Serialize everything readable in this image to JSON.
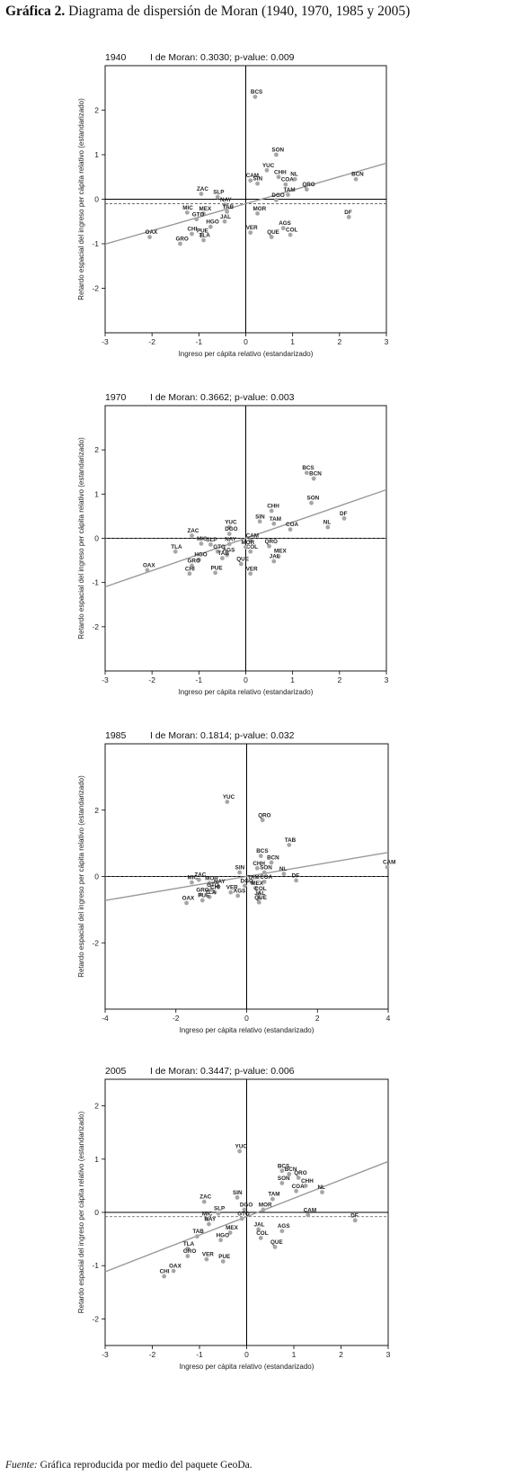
{
  "figure": {
    "title_bold": "Gráfica 2.",
    "title_rest": " Diagrama de dispersión de Moran (1940, 1970, 1985 y 2005)",
    "source_label": "Fuente:",
    "source_text": " Gráfica reproducida por medio del paquete GeoDa."
  },
  "colors": {
    "points": "#a6a6a6",
    "regression": "#9a9a9a",
    "axes": "#000000",
    "frame": "#000000"
  },
  "chart_data": [
    {
      "type": "scatter",
      "year": "1940",
      "stat": "I de Moran: 0.3030; p-value: 0.009",
      "xlabel": "Ingreso per cápita relativo (estandarizado)",
      "ylabel": "Retardo espacial del ingreso per cápita relativo (estandarizado)",
      "xlim": [
        -3,
        3
      ],
      "ylim": [
        -3,
        3
      ],
      "xticks": [
        "-3",
        "-2",
        "-1",
        "0",
        "1",
        "2",
        "3"
      ],
      "yticks": [
        "-2",
        "-1",
        "0",
        "1",
        "2"
      ],
      "ytick_values": [
        -2,
        -1,
        0,
        1,
        2
      ],
      "regression": {
        "slope": 0.303,
        "intercept": -0.1
      },
      "mean_line": -0.1,
      "points": [
        {
          "label": "BCS",
          "x": 0.2,
          "y": 2.3
        },
        {
          "label": "SON",
          "x": 0.65,
          "y": 1.0
        },
        {
          "label": "YUC",
          "x": 0.45,
          "y": 0.65
        },
        {
          "label": "CAM",
          "x": 0.1,
          "y": 0.42
        },
        {
          "label": "CHH",
          "x": 0.7,
          "y": 0.5
        },
        {
          "label": "SIN",
          "x": 0.25,
          "y": 0.35
        },
        {
          "label": "NL",
          "x": 1.05,
          "y": 0.45
        },
        {
          "label": "COA",
          "x": 0.85,
          "y": 0.33
        },
        {
          "label": "QRO",
          "x": 1.3,
          "y": 0.22
        },
        {
          "label": "BCN",
          "x": 2.35,
          "y": 0.45
        },
        {
          "label": "TAM",
          "x": 0.9,
          "y": 0.1
        },
        {
          "label": "DGO",
          "x": 0.65,
          "y": -0.02
        },
        {
          "label": "ZAC",
          "x": -0.95,
          "y": 0.12
        },
        {
          "label": "SLP",
          "x": -0.6,
          "y": 0.05
        },
        {
          "label": "NAY",
          "x": -0.45,
          "y": -0.12
        },
        {
          "label": "TAB",
          "x": -0.4,
          "y": -0.28
        },
        {
          "label": "MOR",
          "x": 0.25,
          "y": -0.32
        },
        {
          "label": "MIC",
          "x": -1.25,
          "y": -0.3
        },
        {
          "label": "MEX",
          "x": -0.9,
          "y": -0.32
        },
        {
          "label": "GTO",
          "x": -1.05,
          "y": -0.45
        },
        {
          "label": "JAL",
          "x": -0.45,
          "y": -0.5
        },
        {
          "label": "HGO",
          "x": -0.75,
          "y": -0.62
        },
        {
          "label": "CHI",
          "x": -1.15,
          "y": -0.78
        },
        {
          "label": "PUE",
          "x": -0.95,
          "y": -0.82
        },
        {
          "label": "TLA",
          "x": -0.9,
          "y": -0.92
        },
        {
          "label": "AGS",
          "x": 0.8,
          "y": -0.65
        },
        {
          "label": "VER",
          "x": 0.1,
          "y": -0.75
        },
        {
          "label": "QUE",
          "x": 0.55,
          "y": -0.85
        },
        {
          "label": "COL",
          "x": 0.95,
          "y": -0.8
        },
        {
          "label": "DF",
          "x": 2.2,
          "y": -0.4
        },
        {
          "label": "OAX",
          "x": -2.05,
          "y": -0.85
        },
        {
          "label": "GRO",
          "x": -1.4,
          "y": -1.0
        }
      ]
    },
    {
      "type": "scatter",
      "year": "1970",
      "stat": "I de Moran: 0.3662; p-value: 0.003",
      "xlabel": "Ingreso per cápita relativo (estandarizado)",
      "ylabel": "Retardo espacial del ingreso per cápita relativo (estandarizado)",
      "xlim": [
        -3,
        3
      ],
      "ylim": [
        -3,
        3
      ],
      "xticks": [
        "-3",
        "-2",
        "-1",
        "0",
        "1",
        "2",
        "3"
      ],
      "yticks": [
        "-2",
        "-1",
        "0",
        "1",
        "2"
      ],
      "ytick_values": [
        -2,
        -1,
        0,
        1,
        2
      ],
      "regression": {
        "slope": 0.366,
        "intercept": 0.0
      },
      "mean_line": 0.0,
      "points": [
        {
          "label": "BCS",
          "x": 1.3,
          "y": 1.48
        },
        {
          "label": "BCN",
          "x": 1.45,
          "y": 1.35
        },
        {
          "label": "SON",
          "x": 1.4,
          "y": 0.8
        },
        {
          "label": "DF",
          "x": 2.1,
          "y": 0.45
        },
        {
          "label": "NL",
          "x": 1.75,
          "y": 0.25
        },
        {
          "label": "CHH",
          "x": 0.55,
          "y": 0.62
        },
        {
          "label": "SIN",
          "x": 0.3,
          "y": 0.38
        },
        {
          "label": "TAM",
          "x": 0.6,
          "y": 0.33
        },
        {
          "label": "COA",
          "x": 0.95,
          "y": 0.2
        },
        {
          "label": "YUC",
          "x": -0.35,
          "y": 0.25
        },
        {
          "label": "DGO",
          "x": -0.35,
          "y": 0.1
        },
        {
          "label": "ZAC",
          "x": -1.15,
          "y": 0.06
        },
        {
          "label": "CAM",
          "x": 0.1,
          "y": -0.05
        },
        {
          "label": "MIC",
          "x": -0.95,
          "y": -0.12
        },
        {
          "label": "SLP",
          "x": -0.75,
          "y": -0.14
        },
        {
          "label": "NAY",
          "x": -0.35,
          "y": -0.13
        },
        {
          "label": "QRO",
          "x": 0.5,
          "y": -0.18
        },
        {
          "label": "TLA",
          "x": -1.5,
          "y": -0.3
        },
        {
          "label": "GTO",
          "x": -0.6,
          "y": -0.3
        },
        {
          "label": "COL",
          "x": 0.1,
          "y": -0.3
        },
        {
          "label": "MOR",
          "x": 0.0,
          "y": -0.2
        },
        {
          "label": "AGS",
          "x": -0.4,
          "y": -0.38
        },
        {
          "label": "TAB",
          "x": -0.5,
          "y": -0.45
        },
        {
          "label": "HGO",
          "x": -1.0,
          "y": -0.48
        },
        {
          "label": "MEX",
          "x": 0.7,
          "y": -0.4
        },
        {
          "label": "JAL",
          "x": 0.6,
          "y": -0.52
        },
        {
          "label": "QUE",
          "x": -0.1,
          "y": -0.58
        },
        {
          "label": "GRO",
          "x": -1.15,
          "y": -0.62
        },
        {
          "label": "OAX",
          "x": -2.1,
          "y": -0.72
        },
        {
          "label": "CHI",
          "x": -1.2,
          "y": -0.8
        },
        {
          "label": "PUE",
          "x": -0.65,
          "y": -0.78
        },
        {
          "label": "VER",
          "x": 0.1,
          "y": -0.8
        }
      ]
    },
    {
      "type": "scatter",
      "year": "1985",
      "stat": "I de Moran: 0.1814; p-value: 0.032",
      "xlabel": "Ingreso per cápita relativo (estandarizado)",
      "ylabel": "Retardo espacial del ingreso per cápita relativo (estandarizado)",
      "xlim": [
        -4,
        4
      ],
      "ylim": [
        -4,
        4
      ],
      "xticks": [
        "-4",
        "-2",
        "0",
        "2",
        "4"
      ],
      "yticks": [
        "-2",
        "0",
        "2"
      ],
      "ytick_values": [
        -2,
        0,
        2
      ],
      "regression": {
        "slope": 0.181,
        "intercept": 0.0
      },
      "mean_line": 0.0,
      "points": [
        {
          "label": "YUC",
          "x": -0.55,
          "y": 2.25
        },
        {
          "label": "QRO",
          "x": 0.45,
          "y": 1.7
        },
        {
          "label": "TAB",
          "x": 1.2,
          "y": 0.95
        },
        {
          "label": "BCS",
          "x": 0.4,
          "y": 0.62
        },
        {
          "label": "BCN",
          "x": 0.7,
          "y": 0.42
        },
        {
          "label": "CHH",
          "x": 0.3,
          "y": 0.25
        },
        {
          "label": "SIN",
          "x": -0.2,
          "y": 0.12
        },
        {
          "label": "SON",
          "x": 0.5,
          "y": 0.12
        },
        {
          "label": "NL",
          "x": 1.05,
          "y": 0.08
        },
        {
          "label": "CAM",
          "x": 4.05,
          "y": 0.28
        },
        {
          "label": "ZAC",
          "x": -1.35,
          "y": -0.1
        },
        {
          "label": "MIC",
          "x": -1.55,
          "y": -0.18
        },
        {
          "label": "MOR",
          "x": -1.05,
          "y": -0.2
        },
        {
          "label": "TAM",
          "x": 0.15,
          "y": -0.18
        },
        {
          "label": "COA",
          "x": 0.5,
          "y": -0.16
        },
        {
          "label": "DF",
          "x": 1.4,
          "y": -0.12
        },
        {
          "label": "NAY",
          "x": -0.8,
          "y": -0.3
        },
        {
          "label": "DGO",
          "x": -0.05,
          "y": -0.28
        },
        {
          "label": "MEX",
          "x": 0.25,
          "y": -0.35
        },
        {
          "label": "GTO",
          "x": -1.0,
          "y": -0.4
        },
        {
          "label": "COL",
          "x": 0.35,
          "y": -0.52
        },
        {
          "label": "CHI",
          "x": -0.9,
          "y": -0.48
        },
        {
          "label": "VER",
          "x": -0.45,
          "y": -0.48
        },
        {
          "label": "GRO",
          "x": -1.3,
          "y": -0.55
        },
        {
          "label": "AGS",
          "x": -0.25,
          "y": -0.58
        },
        {
          "label": "TLA",
          "x": -1.05,
          "y": -0.62
        },
        {
          "label": "JAL",
          "x": 0.35,
          "y": -0.65
        },
        {
          "label": "PUE",
          "x": -1.25,
          "y": -0.72
        },
        {
          "label": "OAX",
          "x": -1.7,
          "y": -0.8
        },
        {
          "label": "QUE",
          "x": 0.35,
          "y": -0.78
        }
      ]
    },
    {
      "type": "scatter",
      "year": "2005",
      "stat": "I de Moran: 0.3447; p-value: 0.006",
      "xlabel": "Ingreso per cápita relativo (estandarizado)",
      "ylabel": "Retardo espacial del ingreso per cápita relativo (estandarizado)",
      "xlim": [
        -3,
        3
      ],
      "ylim": [
        -2.5,
        2.5
      ],
      "xticks": [
        "-3",
        "-2",
        "-1",
        "0",
        "1",
        "2",
        "3"
      ],
      "yticks": [
        "-2",
        "-1",
        "0",
        "1",
        "2"
      ],
      "ytick_values": [
        -2,
        -1,
        0,
        1,
        2
      ],
      "regression": {
        "slope": 0.345,
        "intercept": -0.08
      },
      "mean_line": -0.08,
      "points": [
        {
          "label": "YUC",
          "x": -0.15,
          "y": 1.15
        },
        {
          "label": "BCS",
          "x": 0.75,
          "y": 0.78
        },
        {
          "label": "BCN",
          "x": 0.9,
          "y": 0.72
        },
        {
          "label": "QRO",
          "x": 1.1,
          "y": 0.65
        },
        {
          "label": "SON",
          "x": 0.75,
          "y": 0.55
        },
        {
          "label": "CHH",
          "x": 1.25,
          "y": 0.5
        },
        {
          "label": "COA",
          "x": 1.05,
          "y": 0.4
        },
        {
          "label": "NL",
          "x": 1.6,
          "y": 0.38
        },
        {
          "label": "TAM",
          "x": 0.55,
          "y": 0.25
        },
        {
          "label": "ZAC",
          "x": -0.9,
          "y": 0.2
        },
        {
          "label": "SIN",
          "x": -0.2,
          "y": 0.28
        },
        {
          "label": "DGO",
          "x": -0.05,
          "y": 0.05
        },
        {
          "label": "MOR",
          "x": 0.35,
          "y": 0.05
        },
        {
          "label": "SLP",
          "x": -0.6,
          "y": -0.02
        },
        {
          "label": "CAM",
          "x": 1.3,
          "y": -0.05
        },
        {
          "label": "DF",
          "x": 2.3,
          "y": -0.15
        },
        {
          "label": "MIC",
          "x": -0.85,
          "y": -0.12
        },
        {
          "label": "GTO",
          "x": -0.1,
          "y": -0.12
        },
        {
          "label": "NAY",
          "x": -0.8,
          "y": -0.22
        },
        {
          "label": "JAL",
          "x": 0.25,
          "y": -0.32
        },
        {
          "label": "MEX",
          "x": -0.35,
          "y": -0.38
        },
        {
          "label": "AGS",
          "x": 0.75,
          "y": -0.35
        },
        {
          "label": "TAB",
          "x": -1.05,
          "y": -0.45
        },
        {
          "label": "HGO",
          "x": -0.55,
          "y": -0.52
        },
        {
          "label": "COL",
          "x": 0.3,
          "y": -0.48
        },
        {
          "label": "QUE",
          "x": 0.6,
          "y": -0.65
        },
        {
          "label": "TLA",
          "x": -1.25,
          "y": -0.68
        },
        {
          "label": "GRO",
          "x": -1.25,
          "y": -0.82
        },
        {
          "label": "VER",
          "x": -0.85,
          "y": -0.88
        },
        {
          "label": "PUE",
          "x": -0.5,
          "y": -0.92
        },
        {
          "label": "OAX",
          "x": -1.55,
          "y": -1.1
        },
        {
          "label": "CHI",
          "x": -1.75,
          "y": -1.2
        }
      ]
    }
  ]
}
